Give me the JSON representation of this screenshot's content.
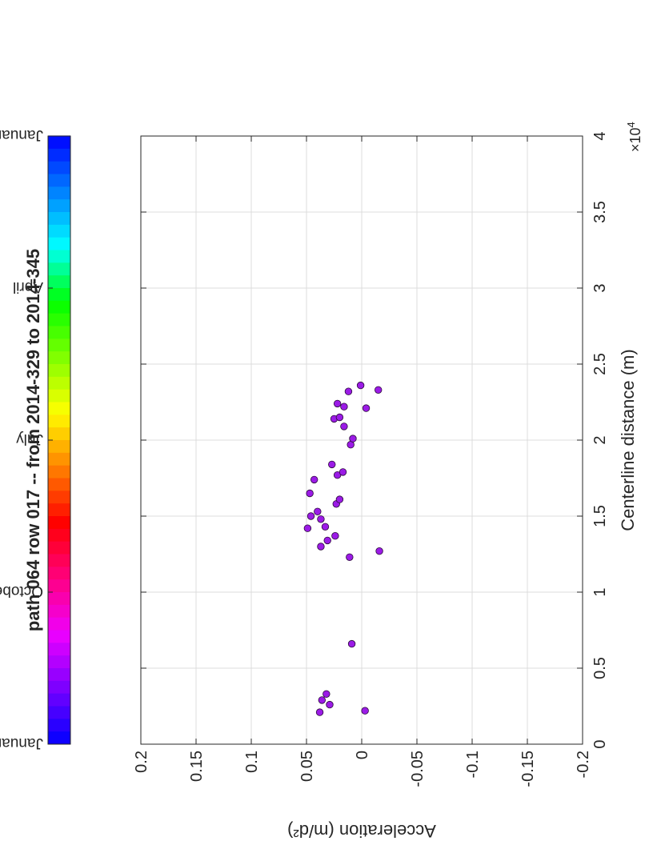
{
  "chart_data": {
    "type": "scatter",
    "title": "path 064 row 017  -- from 2014-329 to 2014-345",
    "xlabel": "Centerline distance (m)",
    "ylabel": "Acceleration (m/d²)",
    "xlim": [
      0,
      40000
    ],
    "ylim": [
      -0.2,
      0.2
    ],
    "x_ticks": [
      0,
      0.5,
      1,
      1.5,
      2,
      2.5,
      3,
      3.5,
      4
    ],
    "x_tick_labels": [
      "0",
      "0.5",
      "1",
      "1.5",
      "2",
      "2.5",
      "3",
      "3.5",
      "4"
    ],
    "x_exponent_label": "×10",
    "x_exponent_power": "4",
    "y_ticks": [
      0.2,
      0.15,
      0.1,
      0.05,
      0,
      -0.05,
      -0.1,
      -0.15,
      -0.2
    ],
    "y_tick_labels": [
      "0.2",
      "0.15",
      "0.1",
      "0.05",
      "0",
      "-0.05",
      "-0.1",
      "-0.15",
      "-0.2"
    ],
    "grid": true,
    "orientation": "rotated 90° counter-clockwise",
    "marker_color": "#9b1be6",
    "marker_edge_color": "#2a0a3a",
    "colorbar": {
      "labels": [
        "January",
        "October",
        "July",
        "April",
        "January"
      ],
      "label_positions": [
        0,
        0.25,
        0.5,
        0.75,
        1
      ],
      "colors": [
        "#0000ff",
        "#7a00ff",
        "#ee00ff",
        "#ff0080",
        "#ff0000",
        "#ff8000",
        "#ffff00",
        "#80ff00",
        "#00ff00",
        "#00ffff",
        "#0080ff",
        "#0000ff"
      ]
    },
    "points": [
      {
        "x": 2100,
        "y": 0.038
      },
      {
        "x": 2200,
        "y": -0.003
      },
      {
        "x": 2600,
        "y": 0.029
      },
      {
        "x": 2900,
        "y": 0.036
      },
      {
        "x": 3300,
        "y": 0.032
      },
      {
        "x": 6600,
        "y": 0.009
      },
      {
        "x": 12300,
        "y": 0.011
      },
      {
        "x": 12700,
        "y": -0.016
      },
      {
        "x": 13000,
        "y": 0.037
      },
      {
        "x": 13400,
        "y": 0.031
      },
      {
        "x": 13700,
        "y": 0.024
      },
      {
        "x": 14200,
        "y": 0.049
      },
      {
        "x": 14300,
        "y": 0.033
      },
      {
        "x": 14800,
        "y": 0.037
      },
      {
        "x": 15000,
        "y": 0.046
      },
      {
        "x": 15300,
        "y": 0.04
      },
      {
        "x": 15800,
        "y": 0.023
      },
      {
        "x": 16100,
        "y": 0.02
      },
      {
        "x": 16500,
        "y": 0.047
      },
      {
        "x": 17400,
        "y": 0.043
      },
      {
        "x": 17700,
        "y": 0.022
      },
      {
        "x": 17900,
        "y": 0.017
      },
      {
        "x": 18400,
        "y": 0.027
      },
      {
        "x": 19700,
        "y": 0.01
      },
      {
        "x": 20100,
        "y": 0.008
      },
      {
        "x": 20900,
        "y": 0.016
      },
      {
        "x": 21400,
        "y": 0.025
      },
      {
        "x": 21500,
        "y": 0.02
      },
      {
        "x": 22100,
        "y": -0.004
      },
      {
        "x": 22200,
        "y": 0.016
      },
      {
        "x": 22400,
        "y": 0.022
      },
      {
        "x": 23200,
        "y": 0.012
      },
      {
        "x": 23300,
        "y": -0.015
      },
      {
        "x": 23600,
        "y": 0.001
      }
    ]
  }
}
